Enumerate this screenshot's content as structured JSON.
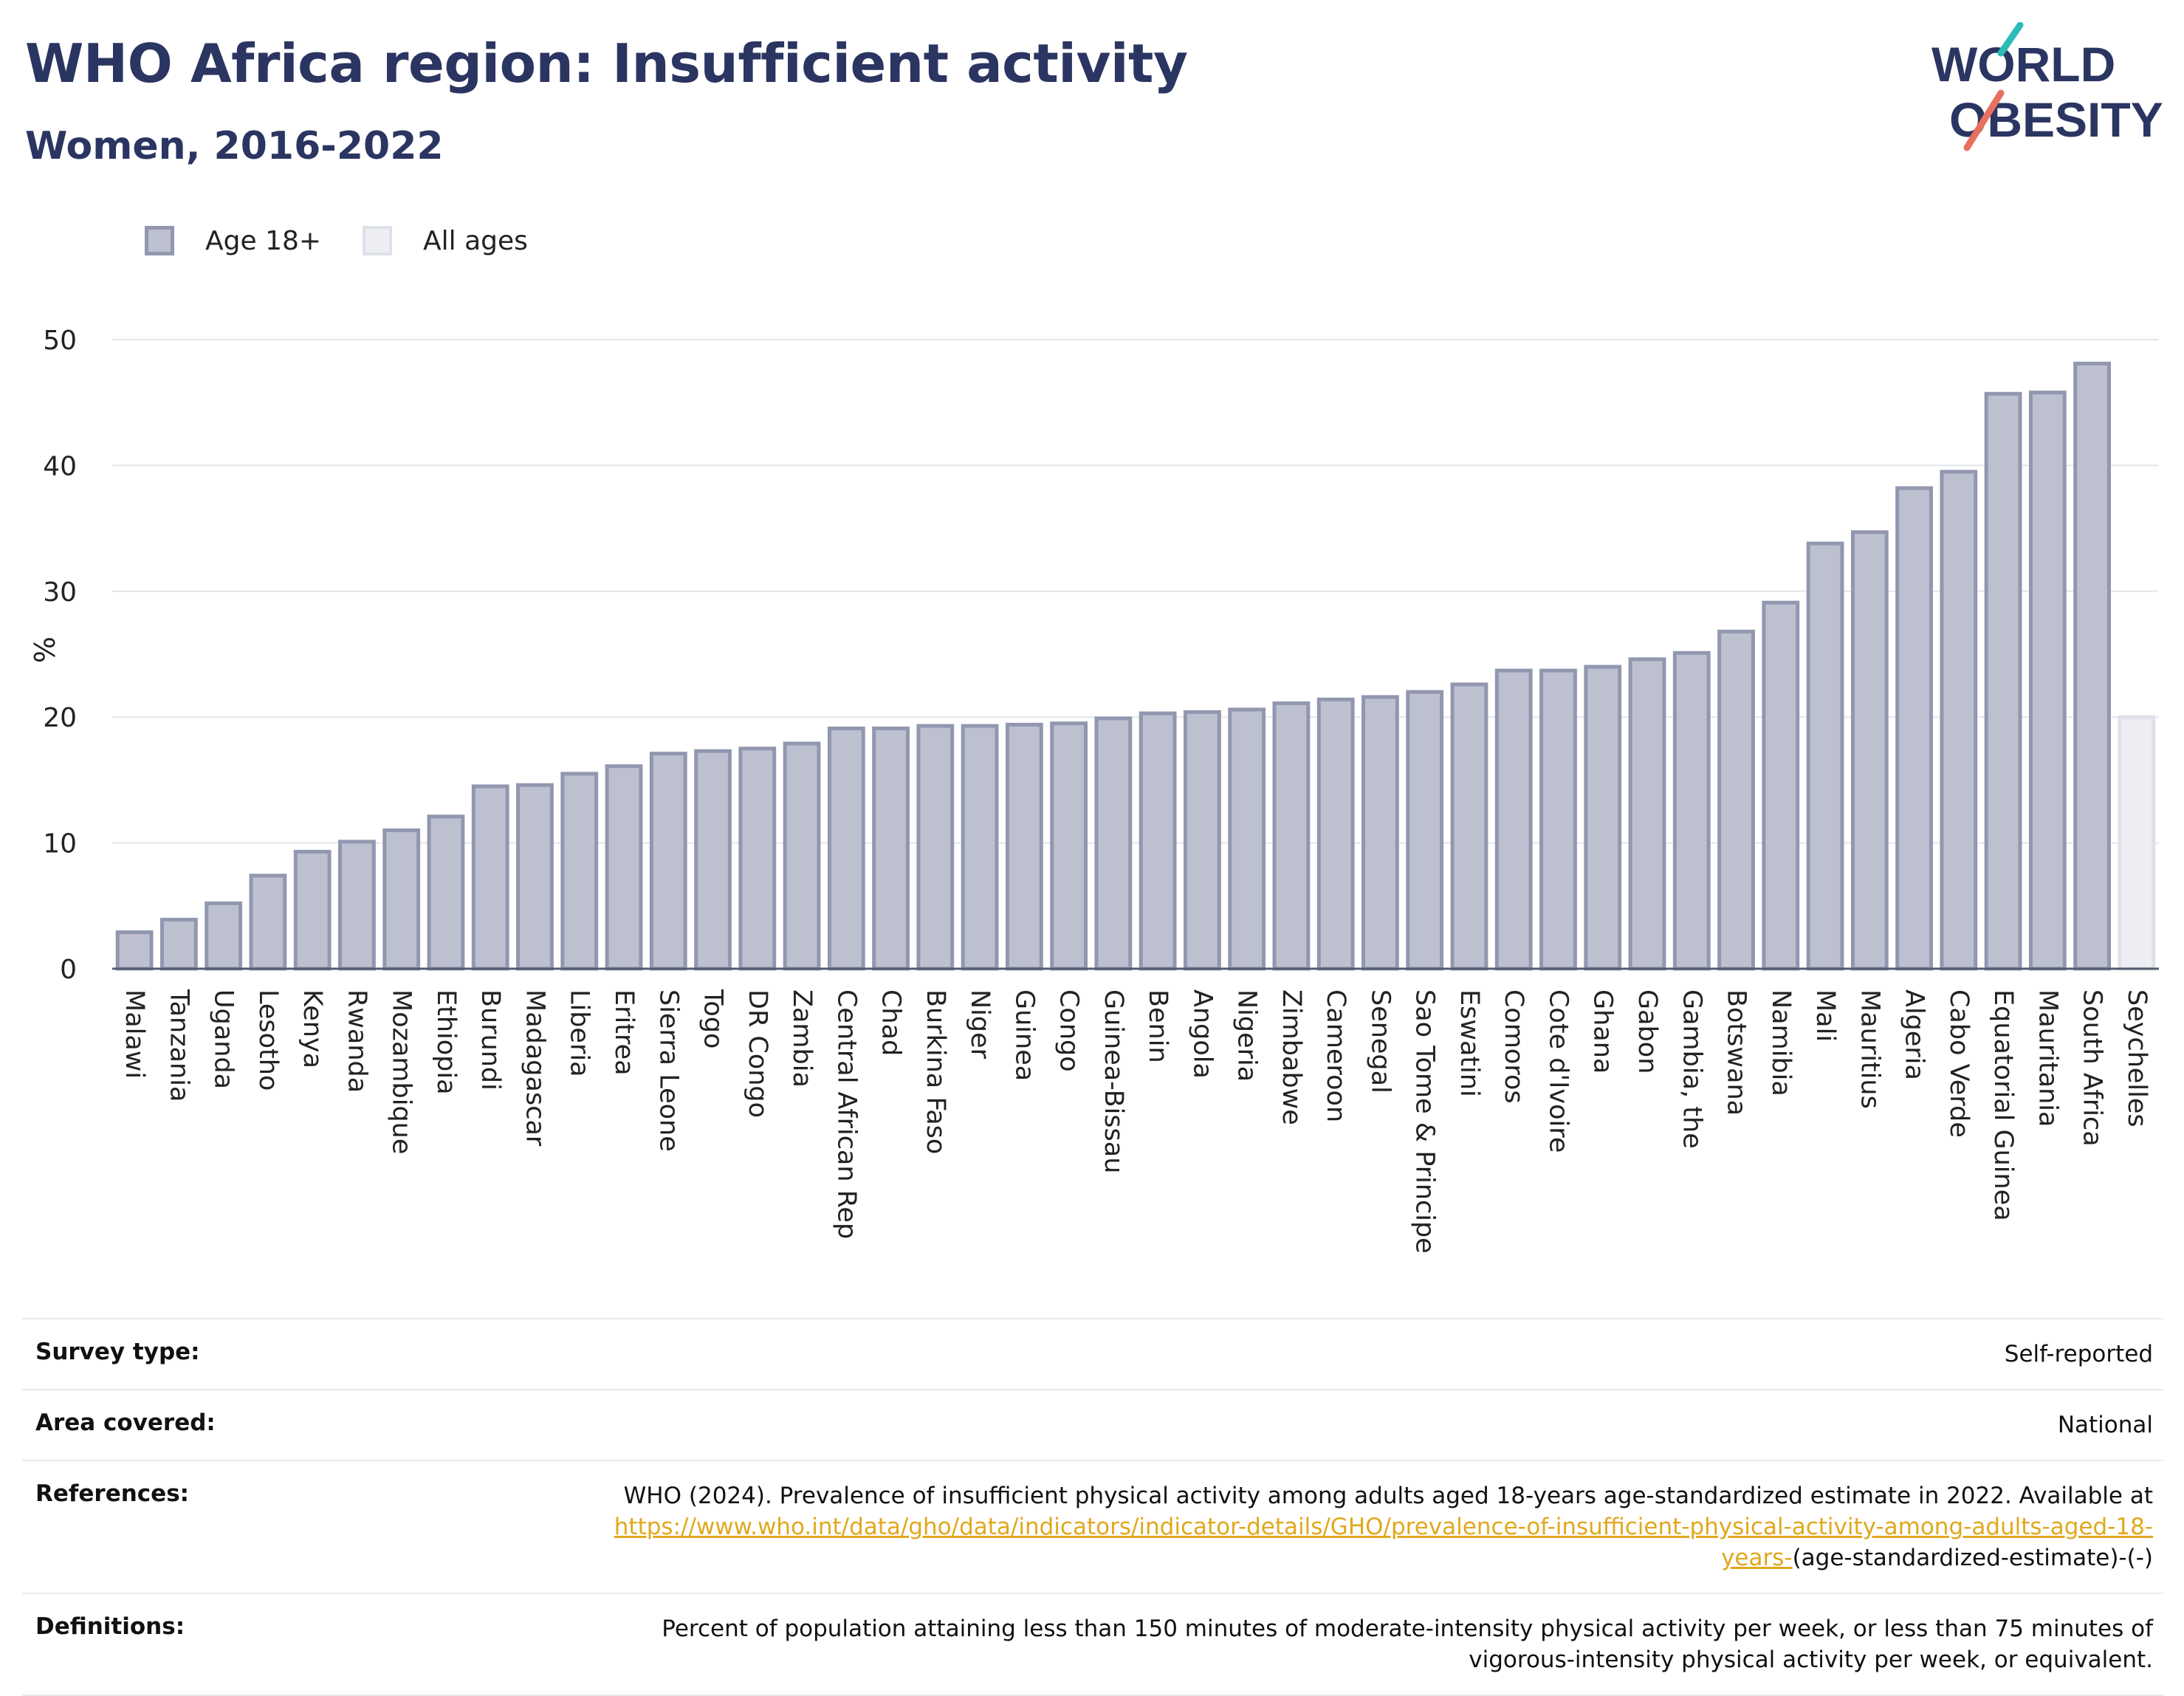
{
  "header": {
    "title": "WHO Africa region: Insufficient activity",
    "subtitle": "Women, 2016-2022"
  },
  "logo": {
    "line1": "WORLD",
    "line2": "OBESITY"
  },
  "legend": [
    {
      "label": "Age 18+",
      "color": "#bdc0cf"
    },
    {
      "label": "All ages",
      "color": "#eceef3"
    }
  ],
  "chart_data": {
    "type": "bar",
    "ylabel": "%",
    "ylim": [
      0,
      50
    ],
    "yticks": [
      0,
      10,
      20,
      30,
      40,
      50
    ],
    "grid": true,
    "legend_placement": "top-left",
    "categories": [
      "Malawi",
      "Tanzania",
      "Uganda",
      "Lesotho",
      "Kenya",
      "Rwanda",
      "Mozambique",
      "Ethiopia",
      "Burundi",
      "Madagascar",
      "Liberia",
      "Eritrea",
      "Sierra Leone",
      "Togo",
      "DR Congo",
      "Zambia",
      "Central African Rep",
      "Chad",
      "Burkina Faso",
      "Niger",
      "Guinea",
      "Congo",
      "Guinea-Bissau",
      "Benin",
      "Angola",
      "Nigeria",
      "Zimbabwe",
      "Cameroon",
      "Senegal",
      "Sao Tome & Principe",
      "Eswatini",
      "Comoros",
      "Cote d'Ivoire",
      "Ghana",
      "Gabon",
      "Gambia, the",
      "Botswana",
      "Namibia",
      "Mali",
      "Mauritius",
      "Algeria",
      "Cabo Verde",
      "Equatorial Guinea",
      "Mauritania",
      "South Africa",
      "Seychelles"
    ],
    "series": [
      {
        "name": "Age 18+",
        "color": "#bdc0cf",
        "border": "#9297b0",
        "values": [
          2.9,
          3.9,
          5.2,
          7.4,
          9.3,
          10.1,
          11.0,
          12.1,
          14.5,
          14.6,
          15.5,
          16.1,
          17.1,
          17.3,
          17.5,
          17.9,
          19.1,
          19.1,
          19.3,
          19.3,
          19.4,
          19.5,
          19.9,
          20.3,
          20.4,
          20.6,
          21.1,
          21.4,
          21.6,
          22.0,
          22.6,
          23.7,
          23.7,
          24.0,
          24.6,
          25.1,
          26.8,
          29.1,
          33.8,
          34.7,
          38.2,
          39.5,
          45.7,
          45.8,
          48.1,
          null
        ]
      },
      {
        "name": "All ages",
        "color": "#eceef3",
        "border": "#dfe1e8",
        "values": [
          null,
          null,
          null,
          null,
          null,
          null,
          null,
          null,
          null,
          null,
          null,
          null,
          null,
          null,
          null,
          null,
          null,
          null,
          null,
          null,
          null,
          null,
          null,
          null,
          null,
          null,
          null,
          null,
          null,
          null,
          null,
          null,
          null,
          null,
          null,
          null,
          null,
          null,
          null,
          null,
          null,
          null,
          null,
          null,
          null,
          20.0
        ]
      }
    ]
  },
  "info": {
    "survey_type_label": "Survey type:",
    "survey_type_value": "Self-reported",
    "area_label": "Area covered:",
    "area_value": "National",
    "references_label": "References:",
    "references_text": "WHO (2024). Prevalence of insufficient physical activity among adults aged 18-years age-standardized estimate in 2022. Available at ",
    "references_link": "https://www.who.int/data/gho/data/indicators/indicator-details/GHO/prevalence-of-insufficient-physical-activity-among-adults-aged-18-years-",
    "references_suffix": "(age-standardized-estimate)-(-)",
    "definitions_label": "Definitions:",
    "definitions_value": "Percent of population attaining less than 150 minutes of moderate-intensity physical activity per week, or less than 75 minutes of vigorous-intensity physical activity per week, or equivalent."
  }
}
